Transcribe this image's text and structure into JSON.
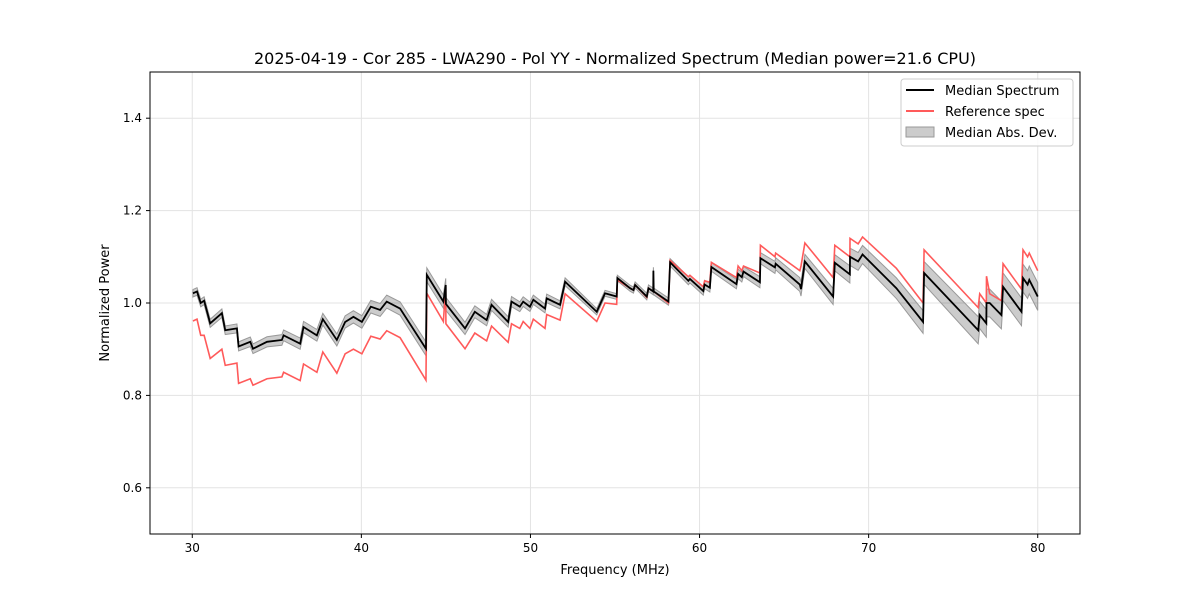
{
  "chart_data": {
    "type": "line",
    "title": "2025-04-19 - Cor 285 - LWA290 - Pol YY - Normalized Spectrum (Median power=21.6 CPU)",
    "xlabel": "Frequency (MHz)",
    "ylabel": "Normalized Power",
    "xlim": [
      27.5,
      82.5
    ],
    "ylim": [
      0.5,
      1.5
    ],
    "xticks": [
      30,
      40,
      50,
      60,
      70,
      80
    ],
    "xtick_labels": [
      "30",
      "40",
      "50",
      "60",
      "70",
      "80"
    ],
    "yticks": [
      0.6,
      0.8,
      1.0,
      1.2,
      1.4
    ],
    "ytick_labels": [
      "0.6",
      "0.8",
      "1.0",
      "1.2",
      "1.4"
    ],
    "grid": true,
    "legend_position": "top-right",
    "legend": [
      "Median Spectrum",
      "Reference spec",
      "Median Abs. Dev."
    ],
    "colors": {
      "median": "#000000",
      "reference": "#ff5a5a",
      "mad": "#b0b0b0"
    },
    "freq": [
      30.04,
      30.28,
      30.5,
      30.7,
      31.06,
      31.75,
      31.95,
      32.64,
      32.74,
      33.43,
      33.59,
      34.42,
      35.3,
      35.4,
      36.38,
      36.58,
      37.37,
      37.72,
      38.55,
      39.04,
      39.53,
      40.03,
      40.56,
      41.11,
      41.5,
      42.29,
      43.82,
      43.87,
      44.85,
      44.99,
      45.0,
      46.13,
      46.71,
      47.41,
      47.7,
      48.68,
      48.88,
      49.37,
      49.57,
      49.97,
      50.17,
      50.86,
      50.96,
      51.75,
      52.05,
      53.92,
      54.41,
      55.1,
      55.14,
      55.89,
      56.09,
      56.19,
      56.88,
      56.98,
      57.26,
      57.27,
      57.29,
      58.16,
      58.26,
      59.34,
      59.43,
      60.22,
      60.3,
      60.61,
      60.7,
      62.18,
      62.28,
      62.5,
      62.6,
      63.57,
      63.6,
      64.46,
      64.5,
      65.93,
      66.0,
      66.23,
      67.9,
      68.0,
      68.89,
      68.9,
      69.38,
      69.64,
      71.64,
      73.22,
      73.28,
      76.48,
      76.57,
      76.96,
      76.97,
      77.16,
      77.85,
      77.95,
      79.04,
      79.13,
      79.4,
      79.5,
      80.0
    ],
    "series": [
      {
        "name": "Median Spectrum",
        "values": [
          1.021,
          1.025,
          1.0,
          1.005,
          0.956,
          0.978,
          0.941,
          0.945,
          0.906,
          0.916,
          0.901,
          0.916,
          0.92,
          0.93,
          0.912,
          0.948,
          0.93,
          0.965,
          0.92,
          0.959,
          0.97,
          0.959,
          0.992,
          0.985,
          1.003,
          0.988,
          0.901,
          1.061,
          1.003,
          1.039,
          0.998,
          0.945,
          0.981,
          0.963,
          0.996,
          0.959,
          1.003,
          0.992,
          1.003,
          0.992,
          1.007,
          0.988,
          1.01,
          0.996,
          1.046,
          0.981,
          1.021,
          1.014,
          1.054,
          1.032,
          1.028,
          1.039,
          1.014,
          1.032,
          1.025,
          1.07,
          1.025,
          1.003,
          1.088,
          1.048,
          1.052,
          1.026,
          1.04,
          1.033,
          1.078,
          1.041,
          1.063,
          1.056,
          1.068,
          1.045,
          1.097,
          1.077,
          1.085,
          1.04,
          1.03,
          1.09,
          1.014,
          1.087,
          1.062,
          1.1,
          1.09,
          1.105,
          1.032,
          0.959,
          1.065,
          0.941,
          0.974,
          0.956,
          1.0,
          1.0,
          0.974,
          1.035,
          0.981,
          1.054,
          1.04,
          1.05,
          1.014
        ]
      },
      {
        "name": "Reference spec",
        "values": [
          0.961,
          0.965,
          0.93,
          0.93,
          0.88,
          0.9,
          0.865,
          0.87,
          0.826,
          0.836,
          0.822,
          0.836,
          0.84,
          0.85,
          0.832,
          0.868,
          0.85,
          0.894,
          0.848,
          0.89,
          0.9,
          0.89,
          0.928,
          0.922,
          0.94,
          0.925,
          0.833,
          1.021,
          0.96,
          1.035,
          0.955,
          0.901,
          0.935,
          0.918,
          0.95,
          0.915,
          0.955,
          0.945,
          0.96,
          0.945,
          0.965,
          0.945,
          0.975,
          0.963,
          1.02,
          0.96,
          1.0,
          0.997,
          1.05,
          1.032,
          1.028,
          1.039,
          1.012,
          1.032,
          1.025,
          1.03,
          1.025,
          1.0,
          1.092,
          1.057,
          1.06,
          1.035,
          1.048,
          1.045,
          1.088,
          1.055,
          1.08,
          1.07,
          1.08,
          1.065,
          1.125,
          1.1,
          1.108,
          1.07,
          1.08,
          1.13,
          1.055,
          1.125,
          1.1,
          1.14,
          1.128,
          1.143,
          1.075,
          1.0,
          1.115,
          0.99,
          1.02,
          1.0,
          1.058,
          1.02,
          1.005,
          1.085,
          1.03,
          1.115,
          1.1,
          1.108,
          1.07
        ]
      }
    ],
    "mad_profile": [
      [
        30,
        0.008
      ],
      [
        36,
        0.012
      ],
      [
        44,
        0.015
      ],
      [
        55,
        0.006
      ],
      [
        62,
        0.01
      ],
      [
        66,
        0.015
      ],
      [
        70,
        0.02
      ],
      [
        77,
        0.03
      ],
      [
        80,
        0.03
      ]
    ]
  }
}
